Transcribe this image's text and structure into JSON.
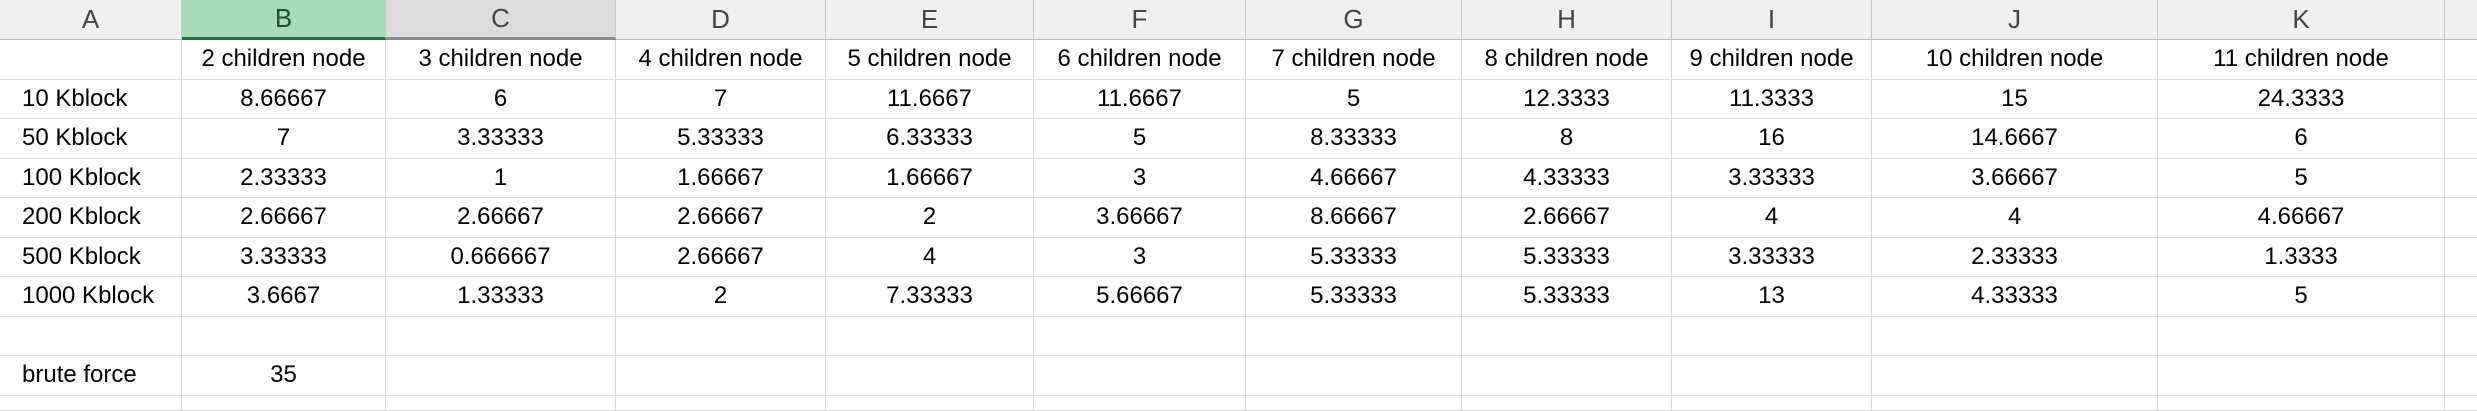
{
  "sheet": {
    "columns": [
      "A",
      "B",
      "C",
      "D",
      "E",
      "F",
      "G",
      "H",
      "I",
      "J",
      "K"
    ],
    "selected_column": "B",
    "header_row": [
      "",
      "2  children node",
      "3 children node",
      "4 children node",
      "5 children node",
      "6 children node",
      "7 children node",
      "8 children node",
      "9 children node",
      "10 children node",
      "11 children node"
    ],
    "rows": [
      [
        "10 Kblock",
        "8.66667",
        "6",
        "7",
        "11.6667",
        "11.6667",
        "5",
        "12.3333",
        "11.3333",
        "15",
        "24.3333"
      ],
      [
        "50 Kblock",
        "7",
        "3.33333",
        "5.33333",
        "6.33333",
        "5",
        "8.33333",
        "8",
        "16",
        "14.6667",
        "6"
      ],
      [
        "100 Kblock",
        "2.33333",
        "1",
        "1.66667",
        "1.66667",
        "3",
        "4.66667",
        "4.33333",
        "3.33333",
        "3.66667",
        "5"
      ],
      [
        "200 Kblock",
        "2.66667",
        "2.66667",
        "2.66667",
        "2",
        "3.66667",
        "8.66667",
        "2.66667",
        "4",
        "4",
        "4.66667"
      ],
      [
        "500 Kblock",
        "3.33333",
        "0.666667",
        "2.66667",
        "4",
        "3",
        "5.33333",
        "5.33333",
        "3.33333",
        "2.33333",
        "1.3333"
      ],
      [
        "1000 Kblock",
        "3.6667",
        "1.33333",
        "2",
        "7.33333",
        "5.66667",
        "5.33333",
        "5.33333",
        "13",
        "4.33333",
        "5"
      ],
      [
        "",
        "",
        "",
        "",
        "",
        "",
        "",
        "",
        "",
        "",
        ""
      ],
      [
        "brute force",
        "35",
        "",
        "",
        "",
        "",
        "",
        "",
        "",
        "",
        ""
      ]
    ]
  }
}
